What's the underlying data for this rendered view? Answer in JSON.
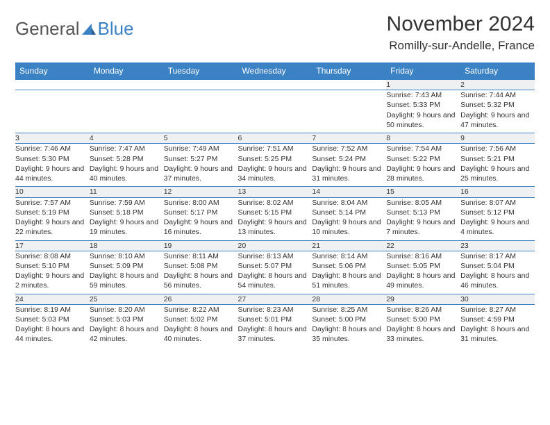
{
  "brand": {
    "part1": "General",
    "part2": "Blue"
  },
  "title": "November 2024",
  "location": "Romilly-sur-Andelle, France",
  "colors": {
    "header_bg": "#3b82c4",
    "header_fg": "#ffffff",
    "daynum_bg": "#eef0f1",
    "border": "#3b82c4",
    "text": "#333333"
  },
  "day_headers": [
    "Sunday",
    "Monday",
    "Tuesday",
    "Wednesday",
    "Thursday",
    "Friday",
    "Saturday"
  ],
  "weeks": [
    [
      null,
      null,
      null,
      null,
      null,
      {
        "n": "1",
        "sr": "Sunrise: 7:43 AM",
        "ss": "Sunset: 5:33 PM",
        "dl": "Daylight: 9 hours and 50 minutes."
      },
      {
        "n": "2",
        "sr": "Sunrise: 7:44 AM",
        "ss": "Sunset: 5:32 PM",
        "dl": "Daylight: 9 hours and 47 minutes."
      }
    ],
    [
      {
        "n": "3",
        "sr": "Sunrise: 7:46 AM",
        "ss": "Sunset: 5:30 PM",
        "dl": "Daylight: 9 hours and 44 minutes."
      },
      {
        "n": "4",
        "sr": "Sunrise: 7:47 AM",
        "ss": "Sunset: 5:28 PM",
        "dl": "Daylight: 9 hours and 40 minutes."
      },
      {
        "n": "5",
        "sr": "Sunrise: 7:49 AM",
        "ss": "Sunset: 5:27 PM",
        "dl": "Daylight: 9 hours and 37 minutes."
      },
      {
        "n": "6",
        "sr": "Sunrise: 7:51 AM",
        "ss": "Sunset: 5:25 PM",
        "dl": "Daylight: 9 hours and 34 minutes."
      },
      {
        "n": "7",
        "sr": "Sunrise: 7:52 AM",
        "ss": "Sunset: 5:24 PM",
        "dl": "Daylight: 9 hours and 31 minutes."
      },
      {
        "n": "8",
        "sr": "Sunrise: 7:54 AM",
        "ss": "Sunset: 5:22 PM",
        "dl": "Daylight: 9 hours and 28 minutes."
      },
      {
        "n": "9",
        "sr": "Sunrise: 7:56 AM",
        "ss": "Sunset: 5:21 PM",
        "dl": "Daylight: 9 hours and 25 minutes."
      }
    ],
    [
      {
        "n": "10",
        "sr": "Sunrise: 7:57 AM",
        "ss": "Sunset: 5:19 PM",
        "dl": "Daylight: 9 hours and 22 minutes."
      },
      {
        "n": "11",
        "sr": "Sunrise: 7:59 AM",
        "ss": "Sunset: 5:18 PM",
        "dl": "Daylight: 9 hours and 19 minutes."
      },
      {
        "n": "12",
        "sr": "Sunrise: 8:00 AM",
        "ss": "Sunset: 5:17 PM",
        "dl": "Daylight: 9 hours and 16 minutes."
      },
      {
        "n": "13",
        "sr": "Sunrise: 8:02 AM",
        "ss": "Sunset: 5:15 PM",
        "dl": "Daylight: 9 hours and 13 minutes."
      },
      {
        "n": "14",
        "sr": "Sunrise: 8:04 AM",
        "ss": "Sunset: 5:14 PM",
        "dl": "Daylight: 9 hours and 10 minutes."
      },
      {
        "n": "15",
        "sr": "Sunrise: 8:05 AM",
        "ss": "Sunset: 5:13 PM",
        "dl": "Daylight: 9 hours and 7 minutes."
      },
      {
        "n": "16",
        "sr": "Sunrise: 8:07 AM",
        "ss": "Sunset: 5:12 PM",
        "dl": "Daylight: 9 hours and 4 minutes."
      }
    ],
    [
      {
        "n": "17",
        "sr": "Sunrise: 8:08 AM",
        "ss": "Sunset: 5:10 PM",
        "dl": "Daylight: 9 hours and 2 minutes."
      },
      {
        "n": "18",
        "sr": "Sunrise: 8:10 AM",
        "ss": "Sunset: 5:09 PM",
        "dl": "Daylight: 8 hours and 59 minutes."
      },
      {
        "n": "19",
        "sr": "Sunrise: 8:11 AM",
        "ss": "Sunset: 5:08 PM",
        "dl": "Daylight: 8 hours and 56 minutes."
      },
      {
        "n": "20",
        "sr": "Sunrise: 8:13 AM",
        "ss": "Sunset: 5:07 PM",
        "dl": "Daylight: 8 hours and 54 minutes."
      },
      {
        "n": "21",
        "sr": "Sunrise: 8:14 AM",
        "ss": "Sunset: 5:06 PM",
        "dl": "Daylight: 8 hours and 51 minutes."
      },
      {
        "n": "22",
        "sr": "Sunrise: 8:16 AM",
        "ss": "Sunset: 5:05 PM",
        "dl": "Daylight: 8 hours and 49 minutes."
      },
      {
        "n": "23",
        "sr": "Sunrise: 8:17 AM",
        "ss": "Sunset: 5:04 PM",
        "dl": "Daylight: 8 hours and 46 minutes."
      }
    ],
    [
      {
        "n": "24",
        "sr": "Sunrise: 8:19 AM",
        "ss": "Sunset: 5:03 PM",
        "dl": "Daylight: 8 hours and 44 minutes."
      },
      {
        "n": "25",
        "sr": "Sunrise: 8:20 AM",
        "ss": "Sunset: 5:03 PM",
        "dl": "Daylight: 8 hours and 42 minutes."
      },
      {
        "n": "26",
        "sr": "Sunrise: 8:22 AM",
        "ss": "Sunset: 5:02 PM",
        "dl": "Daylight: 8 hours and 40 minutes."
      },
      {
        "n": "27",
        "sr": "Sunrise: 8:23 AM",
        "ss": "Sunset: 5:01 PM",
        "dl": "Daylight: 8 hours and 37 minutes."
      },
      {
        "n": "28",
        "sr": "Sunrise: 8:25 AM",
        "ss": "Sunset: 5:00 PM",
        "dl": "Daylight: 8 hours and 35 minutes."
      },
      {
        "n": "29",
        "sr": "Sunrise: 8:26 AM",
        "ss": "Sunset: 5:00 PM",
        "dl": "Daylight: 8 hours and 33 minutes."
      },
      {
        "n": "30",
        "sr": "Sunrise: 8:27 AM",
        "ss": "Sunset: 4:59 PM",
        "dl": "Daylight: 8 hours and 31 minutes."
      }
    ]
  ]
}
